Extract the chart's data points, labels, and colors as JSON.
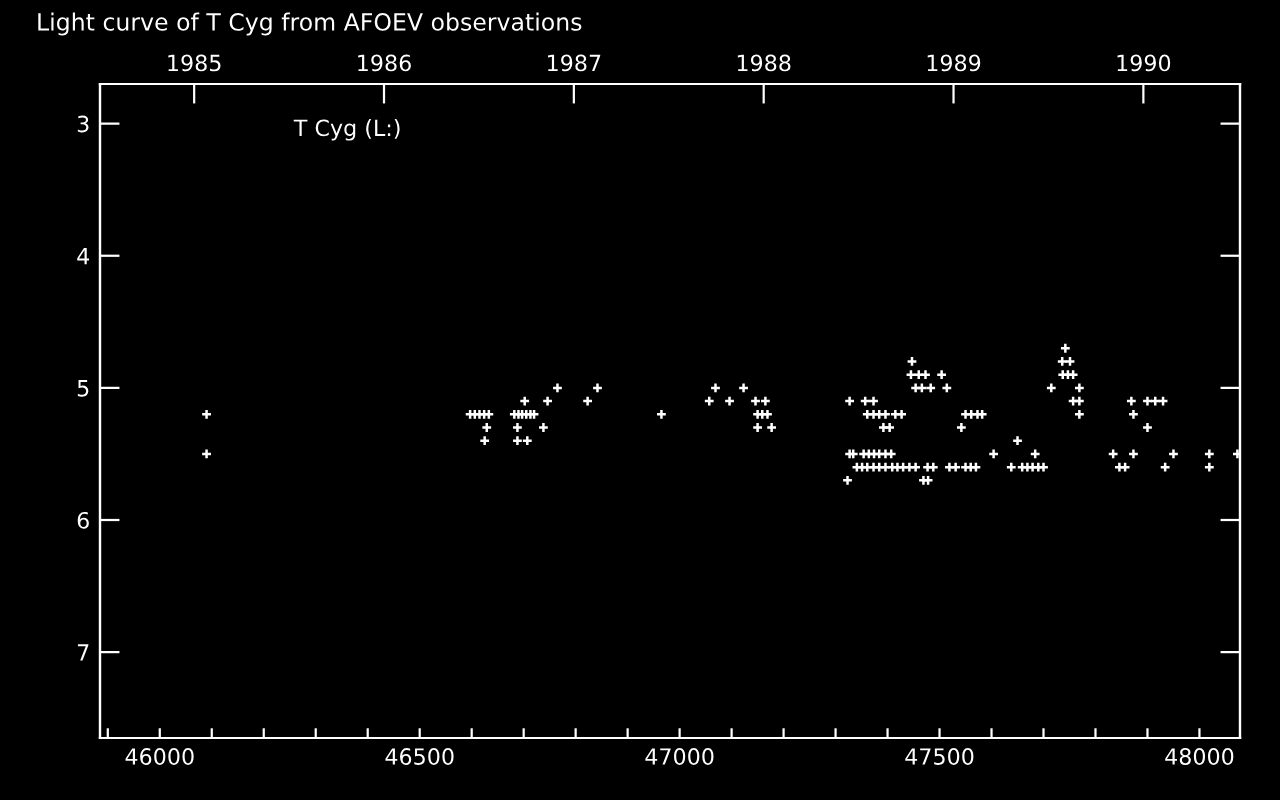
{
  "chart_data": {
    "type": "scatter",
    "title": "Light curve of T Cyg from AFOEV observations",
    "annotations": [
      "T Cyg (L:)"
    ],
    "xlim": [
      45885,
      48078
    ],
    "ylim": [
      7.65,
      2.7
    ],
    "xticks": [
      {
        "value": 45900,
        "label": null
      },
      46000,
      {
        "value": 46100,
        "label": null
      },
      {
        "value": 46200,
        "label": null
      },
      {
        "value": 46300,
        "label": null
      },
      {
        "value": 46400,
        "label": null
      },
      46500,
      {
        "value": 46600,
        "label": null
      },
      {
        "value": 46700,
        "label": null
      },
      {
        "value": 46800,
        "label": null
      },
      {
        "value": 46900,
        "label": null
      },
      47000,
      {
        "value": 47100,
        "label": null
      },
      {
        "value": 47200,
        "label": null
      },
      {
        "value": 47300,
        "label": null
      },
      {
        "value": 47400,
        "label": null
      },
      47500,
      {
        "value": 47600,
        "label": null
      },
      {
        "value": 47700,
        "label": null
      },
      {
        "value": 47800,
        "label": null
      },
      {
        "value": 47900,
        "label": null
      },
      48000
    ],
    "yticks": [
      3,
      4,
      5,
      6,
      7
    ],
    "x2lim": [
      1984.504,
      1990.509
    ],
    "x2ticks": [
      1985,
      1986,
      1987,
      1988,
      1989,
      1990
    ],
    "tick_labels": "xy",
    "marker": "cross",
    "legend": false,
    "series": [
      {
        "color": "#ffffff",
        "x": [
          46090,
          46090,
          46597,
          46606,
          46615,
          46624,
          46633,
          46629,
          46625,
          46702,
          46746,
          46765,
          46842,
          46823,
          46682,
          46690,
          46697,
          46705,
          46713,
          46720,
          46688,
          46738,
          46688,
          46707,
          46965,
          47742,
          47447,
          47736,
          47751,
          47445,
          47460,
          47473,
          47504,
          47737,
          47747,
          47757,
          47069,
          47123,
          47454,
          47466,
          47483,
          47514,
          47715,
          47769,
          47057,
          47096,
          47146,
          47165,
          47327,
          47357,
          47373,
          47757,
          47769,
          47869,
          47900,
          47915,
          47930,
          47150,
          47159,
          47169,
          47361,
          47373,
          47384,
          47396,
          47415,
          47427,
          47550,
          47561,
          47573,
          47582,
          47769,
          47873,
          47150,
          47177,
          47392,
          47404,
          47542,
          47900,
          47650,
          47327,
          47334,
          47354,
          47364,
          47374,
          47384,
          47396,
          47407,
          47604,
          47684,
          47834,
          47873,
          47950,
          48019,
          48073,
          47341,
          47351,
          47361,
          47373,
          47384,
          47396,
          47409,
          47419,
          47430,
          47442,
          47454,
          47477,
          47488,
          47519,
          47531,
          47550,
          47560,
          47570,
          47638,
          47659,
          47669,
          47679,
          47690,
          47700,
          47846,
          47857,
          47934,
          48019,
          47323,
          47469,
          47478
        ],
        "values": [
          5.2,
          5.5,
          5.2,
          5.2,
          5.2,
          5.2,
          5.2,
          5.3,
          5.4,
          5.1,
          5.1,
          5.0,
          5.0,
          5.1,
          5.2,
          5.2,
          5.2,
          5.2,
          5.2,
          5.2,
          5.3,
          5.3,
          5.4,
          5.4,
          5.2,
          4.7,
          4.8,
          4.8,
          4.8,
          4.9,
          4.9,
          4.9,
          4.9,
          4.9,
          4.9,
          4.9,
          5.0,
          5.0,
          5.0,
          5.0,
          5.0,
          5.0,
          5.0,
          5.0,
          5.1,
          5.1,
          5.1,
          5.1,
          5.1,
          5.1,
          5.1,
          5.1,
          5.1,
          5.1,
          5.1,
          5.1,
          5.1,
          5.2,
          5.2,
          5.2,
          5.2,
          5.2,
          5.2,
          5.2,
          5.2,
          5.2,
          5.2,
          5.2,
          5.2,
          5.2,
          5.2,
          5.2,
          5.3,
          5.3,
          5.3,
          5.3,
          5.3,
          5.3,
          5.4,
          5.5,
          5.5,
          5.5,
          5.5,
          5.5,
          5.5,
          5.5,
          5.5,
          5.5,
          5.5,
          5.5,
          5.5,
          5.5,
          5.5,
          5.5,
          5.6,
          5.6,
          5.6,
          5.6,
          5.6,
          5.6,
          5.6,
          5.6,
          5.6,
          5.6,
          5.6,
          5.6,
          5.6,
          5.6,
          5.6,
          5.6,
          5.6,
          5.6,
          5.6,
          5.6,
          5.6,
          5.6,
          5.6,
          5.6,
          5.6,
          5.6,
          5.6,
          5.6,
          5.7,
          5.7,
          5.7
        ]
      }
    ]
  }
}
